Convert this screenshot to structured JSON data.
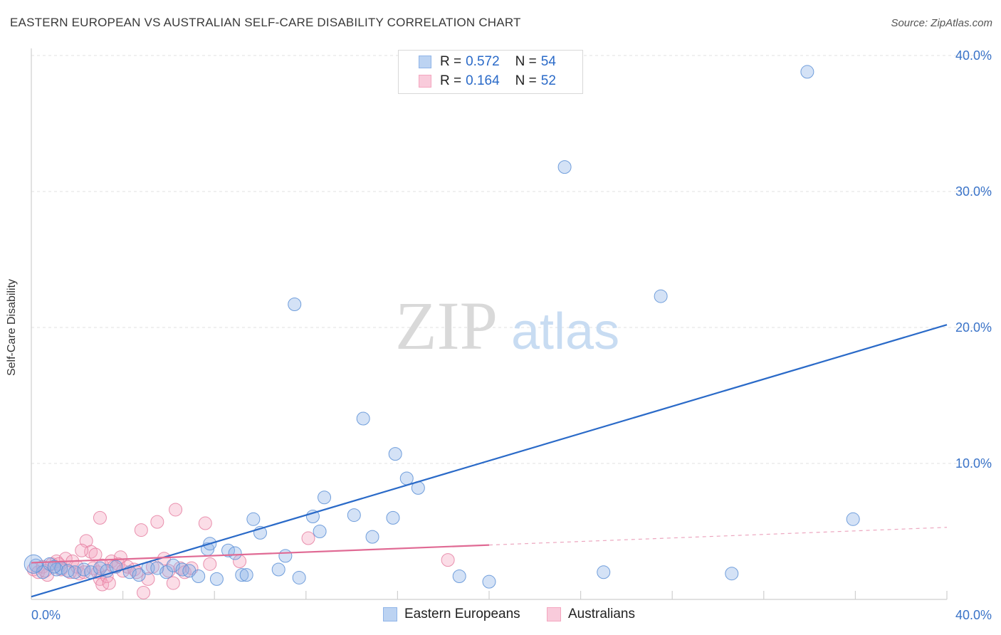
{
  "title": "EASTERN EUROPEAN VS AUSTRALIAN SELF-CARE DISABILITY CORRELATION CHART",
  "source": "Source: ZipAtlas.com",
  "watermark": {
    "zip": "ZIP",
    "atlas": "atlas"
  },
  "legend": [
    {
      "r_label": "R =",
      "r_value": "0.572",
      "n_label": "N =",
      "n_value": "54",
      "color": "#8fb4e8"
    },
    {
      "r_label": "R =",
      "r_value": "0.164",
      "n_label": "N =",
      "n_value": "52",
      "color": "#f4a6bf"
    }
  ],
  "bottom_legend": [
    {
      "label": "Eastern Europeans",
      "color": "#8fb4e8"
    },
    {
      "label": "Australians",
      "color": "#f4a6bf"
    }
  ],
  "chart_data": {
    "type": "scatter",
    "title": "EASTERN EUROPEAN VS AUSTRALIAN SELF-CARE DISABILITY CORRELATION CHART",
    "ylabel": "Self-Care Disability",
    "xlabel": "",
    "xlim": [
      0,
      40
    ],
    "ylim": [
      0,
      40
    ],
    "x_tick_labels": [
      "0.0%",
      "40.0%"
    ],
    "y_ticks": [
      10,
      20,
      30,
      40
    ],
    "y_tick_labels": [
      "10.0%",
      "20.0%",
      "30.0%",
      "40.0%"
    ],
    "grid": true,
    "series": [
      {
        "name": "Eastern Europeans",
        "color": "#8fb4e8",
        "stroke": "#5b8fd6",
        "trend_color": "#2a6ac8",
        "trend": {
          "x": [
            0,
            40
          ],
          "y": [
            0.2,
            20.2
          ],
          "dashed_from": null
        },
        "points": [
          [
            0.2,
            2.5
          ],
          [
            0.5,
            2.0
          ],
          [
            0.8,
            2.6
          ],
          [
            1.1,
            2.2
          ],
          [
            1.3,
            2.3
          ],
          [
            1.6,
            2.1
          ],
          [
            1.9,
            2.0
          ],
          [
            2.3,
            2.2
          ],
          [
            2.6,
            2.0
          ],
          [
            3.0,
            2.3
          ],
          [
            3.3,
            2.1
          ],
          [
            3.7,
            2.4
          ],
          [
            4.3,
            2.0
          ],
          [
            4.7,
            1.8
          ],
          [
            5.1,
            2.3
          ],
          [
            5.5,
            2.3
          ],
          [
            5.9,
            2.0
          ],
          [
            6.2,
            2.5
          ],
          [
            6.6,
            2.2
          ],
          [
            6.9,
            2.1
          ],
          [
            7.3,
            1.7
          ],
          [
            7.7,
            3.7
          ],
          [
            7.8,
            4.1
          ],
          [
            8.1,
            1.5
          ],
          [
            8.6,
            3.6
          ],
          [
            8.9,
            3.4
          ],
          [
            9.2,
            1.8
          ],
          [
            9.4,
            1.8
          ],
          [
            9.7,
            5.9
          ],
          [
            10.0,
            4.9
          ],
          [
            10.8,
            2.2
          ],
          [
            11.1,
            3.2
          ],
          [
            11.5,
            21.7
          ],
          [
            11.7,
            1.6
          ],
          [
            12.3,
            6.1
          ],
          [
            12.6,
            5.0
          ],
          [
            12.8,
            7.5
          ],
          [
            14.1,
            6.2
          ],
          [
            14.5,
            13.3
          ],
          [
            14.9,
            4.6
          ],
          [
            15.8,
            6.0
          ],
          [
            15.9,
            10.7
          ],
          [
            16.4,
            8.9
          ],
          [
            16.9,
            8.2
          ],
          [
            18.7,
            1.7
          ],
          [
            20.0,
            1.3
          ],
          [
            23.3,
            31.8
          ],
          [
            25.0,
            2.0
          ],
          [
            27.5,
            22.3
          ],
          [
            30.6,
            1.9
          ],
          [
            33.9,
            38.8
          ],
          [
            35.9,
            5.9
          ],
          [
            0.1,
            2.6
          ],
          [
            1.0,
            2.4
          ]
        ]
      },
      {
        "name": "Australians",
        "color": "#f4a6bf",
        "stroke": "#e57fa1",
        "trend_color": "#e06a94",
        "trend": {
          "x": [
            0,
            40
          ],
          "y": [
            2.7,
            5.3
          ],
          "dashed_from": 20
        },
        "points": [
          [
            0.1,
            2.2
          ],
          [
            0.3,
            2.0
          ],
          [
            0.5,
            2.4
          ],
          [
            0.7,
            1.8
          ],
          [
            0.9,
            2.6
          ],
          [
            1.1,
            2.8
          ],
          [
            1.3,
            2.2
          ],
          [
            1.5,
            3.0
          ],
          [
            1.7,
            2.0
          ],
          [
            1.8,
            2.8
          ],
          [
            2.0,
            2.4
          ],
          [
            2.1,
            1.9
          ],
          [
            2.3,
            2.0
          ],
          [
            2.4,
            4.3
          ],
          [
            2.6,
            3.5
          ],
          [
            2.7,
            2.3
          ],
          [
            2.8,
            3.3
          ],
          [
            2.9,
            2.0
          ],
          [
            3.0,
            1.5
          ],
          [
            3.1,
            1.1
          ],
          [
            3.1,
            2.5
          ],
          [
            3.0,
            6.0
          ],
          [
            3.3,
            1.7
          ],
          [
            3.4,
            1.2
          ],
          [
            3.5,
            2.8
          ],
          [
            3.6,
            2.4
          ],
          [
            3.8,
            2.6
          ],
          [
            3.9,
            3.1
          ],
          [
            4.0,
            2.1
          ],
          [
            4.2,
            2.4
          ],
          [
            4.5,
            2.2
          ],
          [
            4.6,
            2.0
          ],
          [
            4.8,
            5.1
          ],
          [
            4.9,
            0.5
          ],
          [
            5.1,
            1.5
          ],
          [
            5.3,
            2.4
          ],
          [
            5.5,
            5.7
          ],
          [
            5.8,
            3.0
          ],
          [
            6.0,
            2.1
          ],
          [
            6.2,
            1.2
          ],
          [
            6.3,
            6.6
          ],
          [
            6.5,
            2.3
          ],
          [
            6.7,
            2.0
          ],
          [
            7.0,
            2.3
          ],
          [
            7.6,
            5.6
          ],
          [
            7.8,
            2.6
          ],
          [
            9.1,
            2.8
          ],
          [
            12.1,
            4.5
          ],
          [
            18.2,
            2.9
          ],
          [
            1.2,
            2.6
          ],
          [
            2.2,
            3.6
          ],
          [
            0.6,
            2.1
          ]
        ]
      }
    ]
  }
}
